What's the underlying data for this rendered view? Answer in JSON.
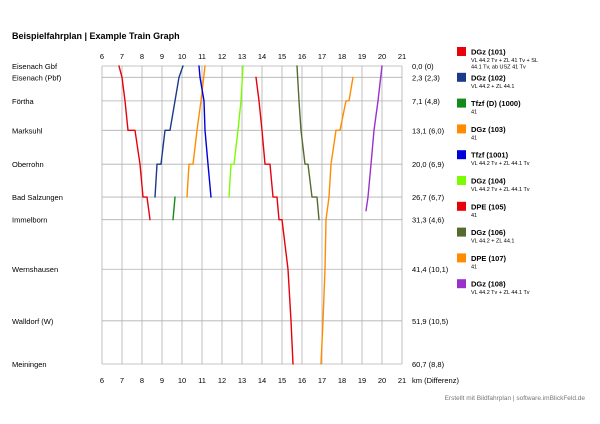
{
  "chart_data": {
    "type": "line",
    "title": "Beispielfahrplan | Example Train Graph",
    "x_ticks": [
      6,
      7,
      8,
      9,
      10,
      11,
      12,
      13,
      14,
      15,
      16,
      17,
      18,
      19,
      20,
      21
    ],
    "xlim": [
      6,
      21
    ],
    "xlabel": "km (Differenz)",
    "grid": true,
    "legend_position": "right",
    "credit": "Erstellt mit Bildfahrplan | software.imBlickFeld.de",
    "stations": [
      {
        "name": "Eisenach Gbf",
        "km_label": "0,0 (0)",
        "km": 0
      },
      {
        "name": "Eisenach (Pbf)",
        "km_label": "2,3 (2,3)",
        "km": 2.3
      },
      {
        "name": "Förtha",
        "km_label": "7,1 (4,8)",
        "km": 7.1
      },
      {
        "name": "Marksuhl",
        "km_label": "13,1 (6,0)",
        "km": 13.1
      },
      {
        "name": "Oberrohn",
        "km_label": "20,0 (6,9)",
        "km": 20.0
      },
      {
        "name": "Bad Salzungen",
        "km_label": "26,7 (6,7)",
        "km": 26.7
      },
      {
        "name": "Immelborn",
        "km_label": "31,3 (4,6)",
        "km": 31.3
      },
      {
        "name": "Wernshausen",
        "km_label": "41,4 (10,1)",
        "km": 41.4
      },
      {
        "name": "Walldorf (W)",
        "km_label": "51,9 (10,5)",
        "km": 51.9
      },
      {
        "name": "Meiningen",
        "km_label": "60,7 (8,8)",
        "km": 60.7
      }
    ],
    "series": [
      {
        "name": "DGz (101)",
        "desc": [
          "VL 44.2 Tv + ZL 41 Tv + SL",
          "44.1 Tv, ab USZ 41 Tv"
        ],
        "color": "#e8000b",
        "points": [
          [
            6.85,
            0
          ],
          [
            7.0,
            2.3
          ],
          [
            7.15,
            7.1
          ],
          [
            7.3,
            13.1
          ],
          [
            7.65,
            13.1
          ],
          [
            7.9,
            20.0
          ],
          [
            8.05,
            26.7
          ],
          [
            8.25,
            26.7
          ],
          [
            8.4,
            31.3
          ]
        ]
      },
      {
        "name": "DGz (102)",
        "desc": [
          "VL 44.2 + ZL 44.1"
        ],
        "color": "#1a3a8c",
        "points": [
          [
            10.05,
            0
          ],
          [
            9.85,
            2.3
          ],
          [
            9.65,
            7.1
          ],
          [
            9.4,
            13.1
          ],
          [
            9.15,
            13.1
          ],
          [
            8.95,
            20.0
          ],
          [
            8.75,
            20.0
          ],
          [
            8.65,
            26.7
          ]
        ]
      },
      {
        "name": "Tfzf (D) (1000)",
        "desc": [
          "41"
        ],
        "color": "#138a1a",
        "points": [
          [
            9.65,
            26.7
          ],
          [
            9.55,
            31.3
          ]
        ]
      },
      {
        "name": "DGz (103)",
        "desc": [
          "41"
        ],
        "color": "#ff8c00",
        "points": [
          [
            11.15,
            0
          ],
          [
            10.95,
            7.1
          ],
          [
            10.75,
            13.1
          ],
          [
            10.55,
            20.0
          ],
          [
            10.35,
            20.0
          ],
          [
            10.25,
            26.7
          ]
        ]
      },
      {
        "name": "Tfzf (1001)",
        "desc": [
          "VL 44.2 Tv + ZL 44.1 Tv"
        ],
        "color": "#0000dd",
        "points": [
          [
            10.85,
            0
          ],
          [
            10.9,
            2.3
          ],
          [
            11.1,
            7.1
          ],
          [
            11.15,
            13.1
          ],
          [
            11.3,
            20.0
          ],
          [
            11.45,
            26.7
          ]
        ]
      },
      {
        "name": "DGz (104)",
        "desc": [
          "VL 44.2 Tv + ZL 44.1 Tv"
        ],
        "color": "#7cfc00",
        "points": [
          [
            13.05,
            0
          ],
          [
            12.95,
            7.1
          ],
          [
            12.8,
            13.1
          ],
          [
            12.6,
            20.0
          ],
          [
            12.45,
            20.0
          ],
          [
            12.35,
            26.7
          ]
        ]
      },
      {
        "name": "DPE (105)",
        "desc": [
          "41"
        ],
        "color": "#e8000b",
        "points": [
          [
            13.7,
            2.3
          ],
          [
            13.85,
            7.1
          ],
          [
            14.0,
            13.1
          ],
          [
            14.15,
            20.0
          ],
          [
            14.4,
            20.0
          ],
          [
            14.55,
            26.7
          ],
          [
            14.75,
            26.7
          ],
          [
            14.85,
            31.3
          ],
          [
            15.0,
            31.3
          ],
          [
            15.3,
            41.4
          ],
          [
            15.45,
            51.9
          ],
          [
            15.55,
            60.7
          ]
        ]
      },
      {
        "name": "DGz (106)",
        "desc": [
          "VL 44.2 + ZL 44.1"
        ],
        "color": "#556b2f",
        "points": [
          [
            15.75,
            0
          ],
          [
            15.85,
            7.1
          ],
          [
            15.95,
            13.1
          ],
          [
            16.15,
            20.0
          ],
          [
            16.3,
            20.0
          ],
          [
            16.5,
            26.7
          ],
          [
            16.75,
            26.7
          ],
          [
            16.85,
            31.3
          ]
        ]
      },
      {
        "name": "DPE (107)",
        "desc": [
          "41"
        ],
        "color": "#ff8c00",
        "points": [
          [
            18.55,
            2.3
          ],
          [
            18.35,
            7.1
          ],
          [
            18.2,
            7.1
          ],
          [
            17.9,
            13.1
          ],
          [
            17.7,
            13.1
          ],
          [
            17.45,
            20.0
          ],
          [
            17.35,
            26.7
          ],
          [
            17.2,
            31.3
          ],
          [
            17.15,
            41.4
          ],
          [
            17.05,
            51.9
          ],
          [
            16.95,
            60.7
          ]
        ]
      },
      {
        "name": "DGz (108)",
        "desc": [
          "VL 44.2 Tv + ZL 44.1 Tv"
        ],
        "color": "#9932cc",
        "points": [
          [
            20.0,
            0
          ],
          [
            19.8,
            7.1
          ],
          [
            19.6,
            13.1
          ],
          [
            19.45,
            20.0
          ],
          [
            19.3,
            26.7
          ],
          [
            19.2,
            29.5
          ]
        ]
      }
    ]
  }
}
